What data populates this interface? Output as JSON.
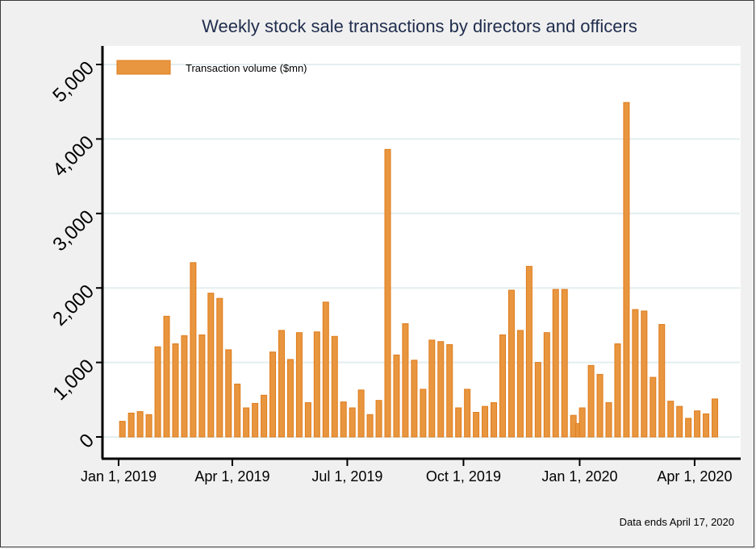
{
  "chart_data": {
    "type": "bar",
    "title": "Weekly stock sale transactions by directors and officers",
    "xlabel": "",
    "ylabel": "",
    "ylim": [
      0,
      5000
    ],
    "yticks": [
      0,
      1000,
      2000,
      3000,
      4000,
      5000
    ],
    "ytick_labels": [
      "0",
      "1,000",
      "2,000",
      "3,000",
      "4,000",
      "5,000"
    ],
    "xticks": [
      {
        "label": "Jan 1, 2019",
        "week": 0
      },
      {
        "label": "Apr 1, 2019",
        "week": 12.86
      },
      {
        "label": "Jul 1, 2019",
        "week": 25.86
      },
      {
        "label": "Oct 1, 2019",
        "week": 39
      },
      {
        "label": "Jan 1, 2020",
        "week": 52.14
      },
      {
        "label": "Apr 1, 2020",
        "week": 65.14
      }
    ],
    "grid": true,
    "legend": {
      "position": "top-left",
      "entries": [
        "Transaction volume ($mn)"
      ]
    },
    "series": [
      {
        "name": "Transaction volume ($mn)",
        "color": "#e8963f",
        "weeks": [
          0.43,
          1.43,
          2.43,
          3.43,
          4.43,
          5.43,
          6.43,
          7.43,
          8.43,
          9.43,
          10.43,
          11.43,
          12.43,
          13.43,
          14.43,
          15.43,
          16.43,
          17.43,
          18.43,
          19.43,
          20.43,
          21.43,
          22.43,
          23.43,
          24.43,
          25.43,
          26.43,
          27.43,
          28.43,
          29.43,
          30.43,
          31.43,
          32.43,
          33.43,
          34.43,
          35.43,
          36.43,
          37.43,
          38.43,
          39.43,
          40.43,
          41.43,
          42.43,
          43.43,
          44.43,
          45.43,
          46.43,
          47.43,
          48.43,
          49.43,
          50.43,
          51.43,
          52.0,
          52.43,
          53.43,
          54.43,
          55.43,
          56.43,
          57.43,
          58.43,
          59.43,
          60.43,
          61.43,
          62.43,
          63.43,
          64.43,
          65.43,
          66.43,
          67.43
        ],
        "values": [
          210,
          320,
          340,
          300,
          1210,
          1620,
          1250,
          1360,
          2340,
          1370,
          1930,
          1860,
          1170,
          710,
          390,
          450,
          560,
          1140,
          1430,
          1040,
          1400,
          460,
          1410,
          1810,
          1350,
          470,
          390,
          630,
          300,
          490,
          3860,
          1100,
          1520,
          1030,
          640,
          1300,
          1280,
          1240,
          390,
          640,
          330,
          410,
          460,
          1370,
          1970,
          1430,
          2290,
          1000,
          1400,
          1980,
          1980,
          290,
          180,
          390,
          960,
          840,
          460,
          1250,
          4490,
          1710,
          1690,
          800,
          1510,
          480,
          410,
          250,
          350,
          310,
          510
        ]
      }
    ],
    "note": "Data ends April 17, 2020"
  }
}
